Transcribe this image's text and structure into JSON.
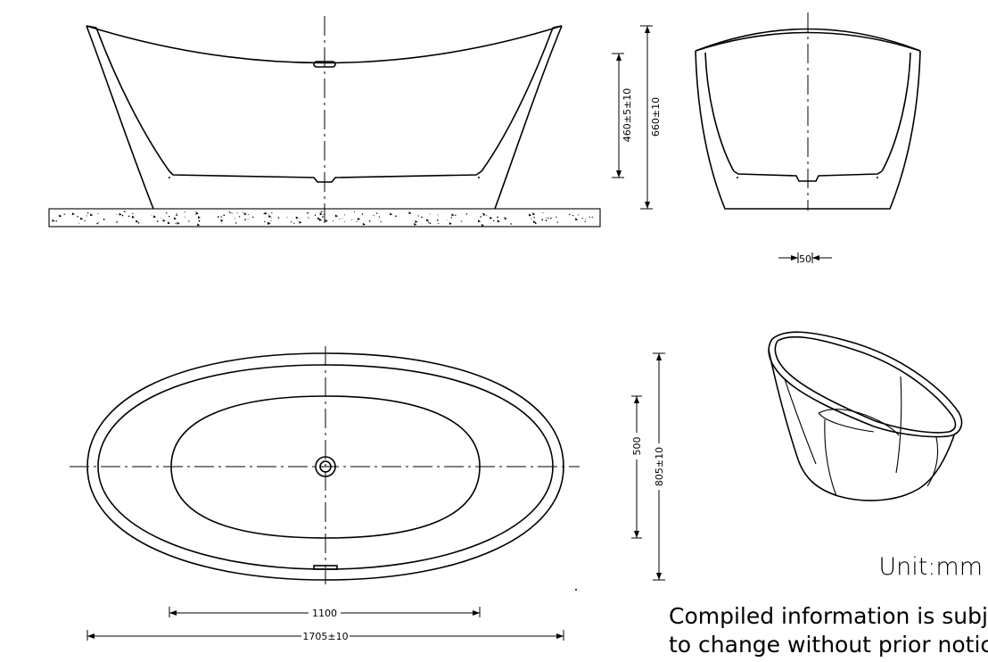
{
  "dimensions": {
    "side_inner_depth": "460±5±10",
    "total_height": "660±10",
    "end_offset": "50",
    "inner_width": "500",
    "total_width": "805±10",
    "inner_length": "1100",
    "total_length": "1705±10"
  },
  "notes": {
    "unit": "Unit:mm",
    "notice_line1": "Compiled information is subject",
    "notice_line2": "to change without prior notice"
  }
}
